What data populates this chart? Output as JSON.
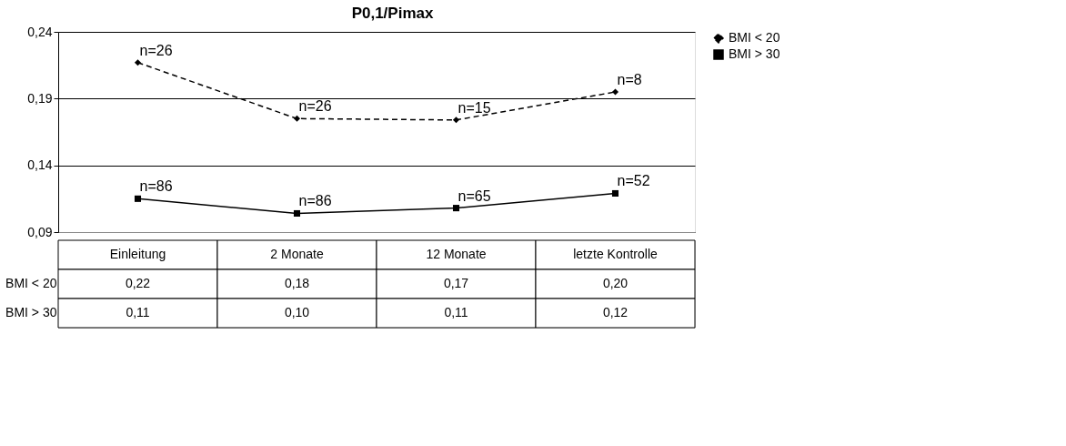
{
  "chart_data": {
    "type": "line",
    "title": "P0,1/Pimax",
    "categories": [
      "Einleitung",
      "2 Monate",
      "12 Monate",
      "letzte Kontrolle"
    ],
    "series": [
      {
        "name": "BMI < 20",
        "color": "#000000",
        "line_style": "dashed",
        "marker": "diamond",
        "values": [
          0.217,
          0.175,
          0.174,
          0.195
        ],
        "value_labels": [
          "0,22",
          "0,18",
          "0,17",
          "0,20"
        ]
      },
      {
        "name": "BMI > 30",
        "color": "#000000",
        "line_style": "solid",
        "marker": "square",
        "values": [
          0.115,
          0.104,
          0.108,
          0.119
        ],
        "value_labels": [
          "0,11",
          "0,10",
          "0,11",
          "0,12"
        ]
      }
    ],
    "ylim": [
      0.09,
      0.24
    ],
    "yticks": [
      {
        "value": 0.09,
        "label": "0,09"
      },
      {
        "value": 0.14,
        "label": "0,14"
      },
      {
        "value": 0.19,
        "label": "0,19"
      },
      {
        "value": 0.24,
        "label": "0,24"
      }
    ],
    "grid": "y",
    "legend": "right",
    "annotations": [
      {
        "text": "n=26",
        "x": "Einleitung",
        "y": 0.217
      },
      {
        "text": "n=26",
        "x": "2 Monate",
        "y": 0.175
      },
      {
        "text": "n=15",
        "x": "12 Monate",
        "y": 0.174
      },
      {
        "text": "n=8",
        "x": "letzte Kontrolle",
        "y": 0.195
      },
      {
        "text": "n=86",
        "x": "Einleitung",
        "y": 0.115
      },
      {
        "text": "n=86",
        "x": "2 Monate",
        "y": 0.104
      },
      {
        "text": "n=65",
        "x": "12 Monate",
        "y": 0.108
      },
      {
        "text": "n=52",
        "x": "letzte Kontrolle",
        "y": 0.119
      }
    ]
  }
}
